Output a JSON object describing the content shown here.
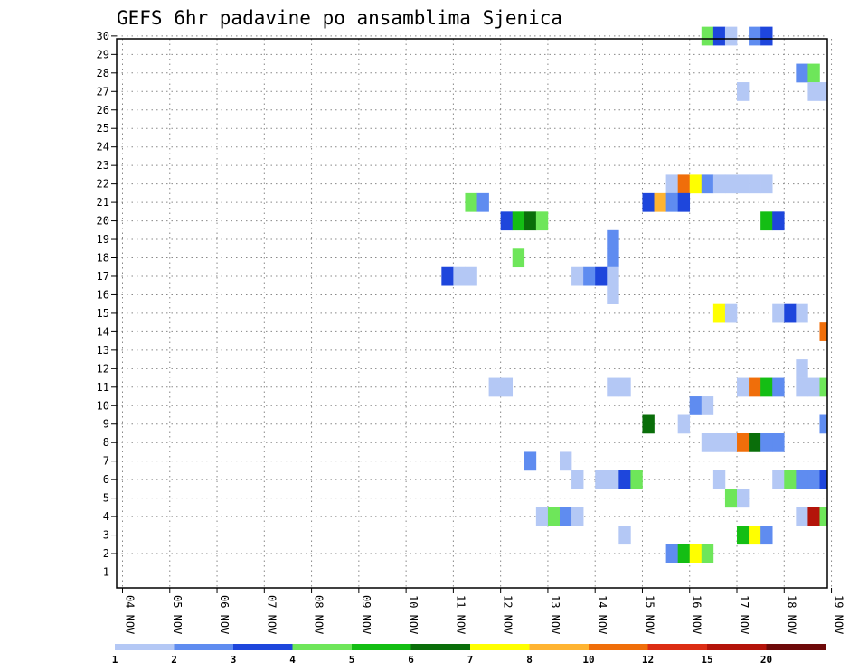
{
  "chart_data": {
    "type": "heatmap",
    "title": "GEFS 6hr padavine po ansamblima Sjenica",
    "xlabel": "",
    "ylabel": "",
    "x_tick_labels": [
      "04 NOV",
      "05 NOV",
      "06 NOV",
      "07 NOV",
      "08 NOV",
      "09 NOV",
      "10 NOV",
      "11 NOV",
      "12 NOV",
      "13 NOV",
      "14 NOV",
      "15 NOV",
      "16 NOV",
      "17 NOV",
      "18 NOV",
      "19 NOV"
    ],
    "y_tick_labels": [
      "1",
      "2",
      "3",
      "4",
      "5",
      "6",
      "7",
      "8",
      "9",
      "10",
      "11",
      "12",
      "13",
      "14",
      "15",
      "16",
      "17",
      "18",
      "19",
      "20",
      "21",
      "22",
      "23",
      "24",
      "25",
      "26",
      "27",
      "28",
      "29",
      "30"
    ],
    "x_range_days": [
      0,
      15
    ],
    "x_step_days": 0.25,
    "y_range": [
      1,
      30
    ],
    "grid": true,
    "legend": {
      "placement": "bottom",
      "colors": [
        "#b4c8f5",
        "#5f8cf0",
        "#1e46dc",
        "#6ee65a",
        "#14be14",
        "#0a6e0a",
        "#ffff00",
        "#ffb432",
        "#f06e0a",
        "#dc2d14",
        "#b4140a",
        "#6e0a0a"
      ],
      "labels": [
        "1",
        "2",
        "3",
        "4",
        "5",
        "6",
        "7",
        "8",
        "10",
        "12",
        "15",
        "20"
      ]
    },
    "cells": [
      [
        12.25,
        30,
        3
      ],
      [
        12.5,
        30,
        2
      ],
      [
        12.75,
        30,
        0
      ],
      [
        13.25,
        30,
        1
      ],
      [
        13.5,
        30,
        2
      ],
      [
        14.25,
        28,
        1
      ],
      [
        14.5,
        28,
        3
      ],
      [
        13.0,
        27,
        0
      ],
      [
        14.5,
        27,
        0
      ],
      [
        14.75,
        27,
        0
      ],
      [
        11.5,
        22,
        0
      ],
      [
        11.75,
        22,
        8
      ],
      [
        12.0,
        22,
        6
      ],
      [
        12.25,
        22,
        1
      ],
      [
        12.5,
        22,
        0
      ],
      [
        12.75,
        22,
        0
      ],
      [
        13.0,
        22,
        0
      ],
      [
        13.25,
        22,
        0
      ],
      [
        13.5,
        22,
        0
      ],
      [
        7.25,
        21,
        3
      ],
      [
        7.5,
        21,
        1
      ],
      [
        11.0,
        21,
        2
      ],
      [
        11.25,
        21,
        7
      ],
      [
        11.5,
        21,
        1
      ],
      [
        11.75,
        21,
        2
      ],
      [
        8.0,
        20,
        2
      ],
      [
        8.25,
        20,
        4
      ],
      [
        8.5,
        20,
        5
      ],
      [
        8.75,
        20,
        3
      ],
      [
        13.5,
        20,
        4
      ],
      [
        13.75,
        20,
        2
      ],
      [
        10.25,
        19,
        1
      ],
      [
        8.25,
        18,
        3
      ],
      [
        10.25,
        18,
        1
      ],
      [
        6.75,
        17,
        2
      ],
      [
        7.0,
        17,
        0
      ],
      [
        7.25,
        17,
        0
      ],
      [
        9.5,
        17,
        0
      ],
      [
        9.75,
        17,
        1
      ],
      [
        10.0,
        17,
        2
      ],
      [
        10.25,
        17,
        0
      ],
      [
        10.25,
        16,
        0
      ],
      [
        12.5,
        15,
        6
      ],
      [
        12.75,
        15,
        0
      ],
      [
        13.75,
        15,
        0
      ],
      [
        14.0,
        15,
        2
      ],
      [
        14.25,
        15,
        0
      ],
      [
        14.75,
        14,
        8
      ],
      [
        14.25,
        12,
        0
      ],
      [
        7.75,
        11,
        0
      ],
      [
        8.0,
        11,
        0
      ],
      [
        10.25,
        11,
        0
      ],
      [
        10.5,
        11,
        0
      ],
      [
        13.0,
        11,
        0
      ],
      [
        13.25,
        11,
        8
      ],
      [
        13.5,
        11,
        4
      ],
      [
        13.75,
        11,
        1
      ],
      [
        14.25,
        11,
        0
      ],
      [
        14.5,
        11,
        0
      ],
      [
        14.75,
        11,
        3
      ],
      [
        12.0,
        10,
        1
      ],
      [
        12.25,
        10,
        0
      ],
      [
        11.0,
        9,
        5
      ],
      [
        11.75,
        9,
        0
      ],
      [
        14.75,
        9,
        1
      ],
      [
        12.25,
        8,
        0
      ],
      [
        12.5,
        8,
        0
      ],
      [
        12.75,
        8,
        0
      ],
      [
        13.0,
        8,
        8
      ],
      [
        13.25,
        8,
        5
      ],
      [
        13.5,
        8,
        1
      ],
      [
        13.75,
        8,
        1
      ],
      [
        8.5,
        7,
        1
      ],
      [
        9.25,
        7,
        0
      ],
      [
        9.5,
        6,
        0
      ],
      [
        10.0,
        6,
        0
      ],
      [
        10.25,
        6,
        0
      ],
      [
        10.5,
        6,
        2
      ],
      [
        10.75,
        6,
        3
      ],
      [
        12.5,
        6,
        0
      ],
      [
        13.75,
        6,
        0
      ],
      [
        14.0,
        6,
        3
      ],
      [
        14.25,
        6,
        1
      ],
      [
        14.5,
        6,
        1
      ],
      [
        14.75,
        6,
        2
      ],
      [
        12.75,
        5,
        3
      ],
      [
        13.0,
        5,
        0
      ],
      [
        8.75,
        4,
        0
      ],
      [
        9.0,
        4,
        3
      ],
      [
        9.25,
        4,
        1
      ],
      [
        9.5,
        4,
        0
      ],
      [
        14.25,
        4,
        0
      ],
      [
        14.5,
        4,
        10
      ],
      [
        14.75,
        4,
        3
      ],
      [
        10.5,
        3,
        0
      ],
      [
        13.0,
        3,
        4
      ],
      [
        13.25,
        3,
        6
      ],
      [
        13.5,
        3,
        1
      ],
      [
        11.5,
        2,
        1
      ],
      [
        11.75,
        2,
        4
      ],
      [
        12.0,
        2,
        6
      ],
      [
        12.25,
        2,
        3
      ]
    ]
  }
}
